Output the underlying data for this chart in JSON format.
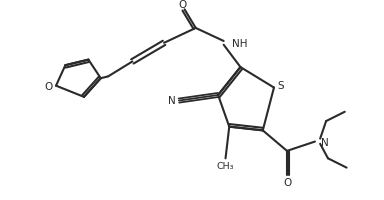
{
  "bg_color": "#ffffff",
  "line_color": "#2a2a2a",
  "line_width": 1.5,
  "fig_width": 3.84,
  "fig_height": 2.01,
  "dpi": 100,
  "xlim": [
    0,
    10.0
  ],
  "ylim": [
    0,
    5.2
  ]
}
